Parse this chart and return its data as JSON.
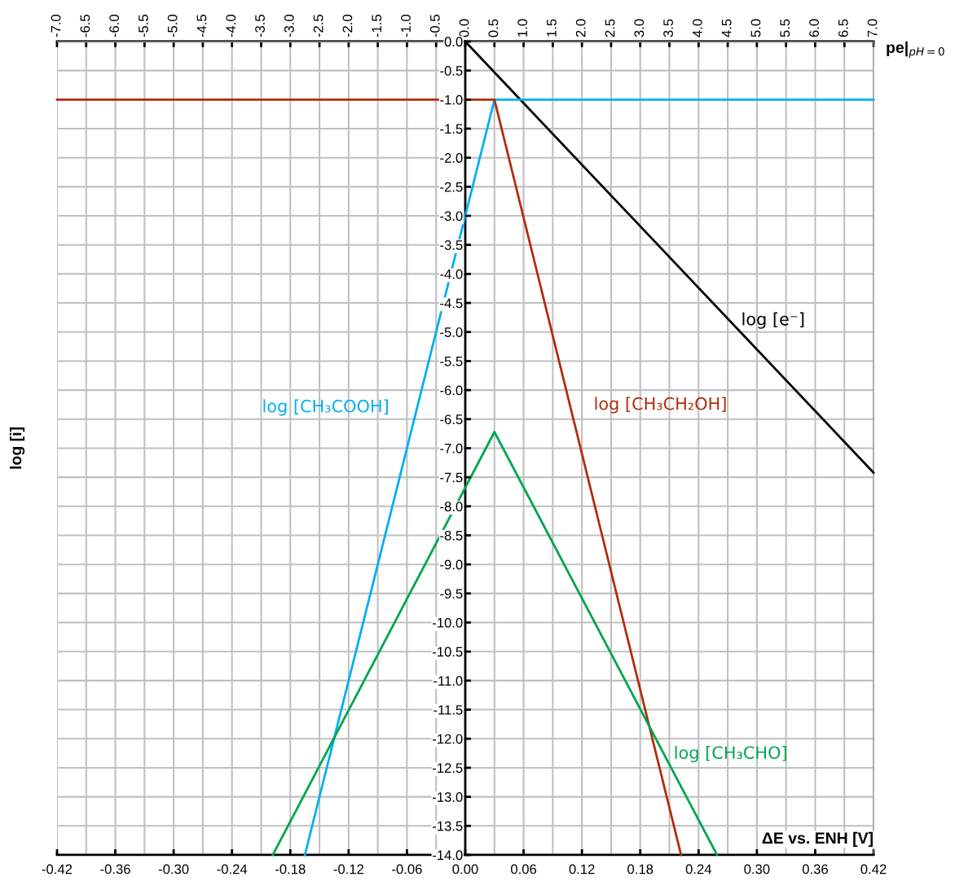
{
  "chart_data": {
    "type": "line",
    "xlabel": "ΔE vs. ENH [V]",
    "ylabel": "log [i]",
    "x2label": "pe|$_{pH=0}$",
    "series": [
      {
        "name": "log [e⁻]",
        "color": "#000000",
        "x": [
          0,
          0.42
        ],
        "values": [
          0,
          -7.42
        ]
      },
      {
        "name": "log [CH₃COOH]",
        "color": "#00b0f0",
        "x": [
          -0.165,
          0.03,
          0.42
        ],
        "values": [
          -14,
          -1,
          -1
        ]
      },
      {
        "name": "log [CH₃CH₂OH]",
        "color": "#b22d0a",
        "x": [
          -0.42,
          0.03,
          0.222
        ],
        "values": [
          -1,
          -1,
          -14
        ]
      },
      {
        "name": "log [CH₃CHO]",
        "color": "#00a550",
        "x": [
          -0.198,
          0.03,
          0.259
        ],
        "values": [
          -14,
          -6.72,
          -14
        ]
      }
    ],
    "xlim": [
      -0.42,
      0.42
    ],
    "ylim": [
      -14,
      0
    ],
    "x2lim": [
      -7,
      7
    ],
    "xticks": [
      {
        "value": -0.42,
        "label": "-0.42"
      },
      {
        "value": -0.36,
        "label": "-0.36"
      },
      {
        "value": -0.3,
        "label": "-0.30"
      },
      {
        "value": -0.24,
        "label": "-0.24"
      },
      {
        "value": -0.18,
        "label": "-0.18"
      },
      {
        "value": -0.12,
        "label": "-0.12"
      },
      {
        "value": -0.06,
        "label": "-0.06"
      },
      {
        "value": 0,
        "label": "0.00"
      },
      {
        "value": 0.06,
        "label": "0.06"
      },
      {
        "value": 0.12,
        "label": "0.12"
      },
      {
        "value": 0.18,
        "label": "0.18"
      },
      {
        "value": 0.24,
        "label": "0.24"
      },
      {
        "value": 0.3,
        "label": "0.30"
      },
      {
        "value": 0.36,
        "label": "0.36"
      },
      {
        "value": 0.42,
        "label": "0.42"
      }
    ],
    "x2ticks": [
      {
        "value": -7,
        "label": "-7.0"
      },
      {
        "value": -6.5,
        "label": "-6.5"
      },
      {
        "value": -6,
        "label": "-6.0"
      },
      {
        "value": -5.5,
        "label": "-5.5"
      },
      {
        "value": -5,
        "label": "-5.0"
      },
      {
        "value": -4.5,
        "label": "-4.5"
      },
      {
        "value": -4,
        "label": "-4.0"
      },
      {
        "value": -3.5,
        "label": "-3.5"
      },
      {
        "value": -3,
        "label": "-3.0"
      },
      {
        "value": -2.5,
        "label": "-2.5"
      },
      {
        "value": -2,
        "label": "-2.0"
      },
      {
        "value": -1.5,
        "label": "-1.5"
      },
      {
        "value": -1,
        "label": "-1.0"
      },
      {
        "value": -0.5,
        "label": "-0.5"
      },
      {
        "value": 0,
        "label": "0.0"
      },
      {
        "value": 0.5,
        "label": "0.5"
      },
      {
        "value": 1,
        "label": "1.0"
      },
      {
        "value": 1.5,
        "label": "1.5"
      },
      {
        "value": 2,
        "label": "2.0"
      },
      {
        "value": 2.5,
        "label": "2.5"
      },
      {
        "value": 3,
        "label": "3.0"
      },
      {
        "value": 3.5,
        "label": "3.5"
      },
      {
        "value": 4,
        "label": "4.0"
      },
      {
        "value": 4.5,
        "label": "4.5"
      },
      {
        "value": 5,
        "label": "5.0"
      },
      {
        "value": 5.5,
        "label": "5.5"
      },
      {
        "value": 6,
        "label": "6.0"
      },
      {
        "value": 6.5,
        "label": "6.5"
      },
      {
        "value": 7,
        "label": "7.0"
      }
    ],
    "yticks": [
      {
        "value": 0,
        "label": "0.0"
      },
      {
        "value": -0.5,
        "label": "-0.5"
      },
      {
        "value": -1,
        "label": "-1.0"
      },
      {
        "value": -1.5,
        "label": "-1.5"
      },
      {
        "value": -2,
        "label": "-2.0"
      },
      {
        "value": -2.5,
        "label": "-2.5"
      },
      {
        "value": -3,
        "label": "-3.0"
      },
      {
        "value": -3.5,
        "label": "-3.5"
      },
      {
        "value": -4,
        "label": "-4.0"
      },
      {
        "value": -4.5,
        "label": "-4.5"
      },
      {
        "value": -5,
        "label": "-5.0"
      },
      {
        "value": -5.5,
        "label": "-5.5"
      },
      {
        "value": -6,
        "label": "-6.0"
      },
      {
        "value": -6.5,
        "label": "-6.5"
      },
      {
        "value": -7,
        "label": "-7.0"
      },
      {
        "value": -7.5,
        "label": "-7.5"
      },
      {
        "value": -8,
        "label": "-8.0"
      },
      {
        "value": -8.5,
        "label": "-8.5"
      },
      {
        "value": -9,
        "label": "-9.0"
      },
      {
        "value": -9.5,
        "label": "-9.5"
      },
      {
        "value": -10,
        "label": "-10.0"
      },
      {
        "value": -10.5,
        "label": "-10.5"
      },
      {
        "value": -11,
        "label": "-11.0"
      },
      {
        "value": -11.5,
        "label": "-11.5"
      },
      {
        "value": -12,
        "label": "-12.0"
      },
      {
        "value": -12.5,
        "label": "-12.5"
      },
      {
        "value": -13,
        "label": "-13.0"
      },
      {
        "value": -13.5,
        "label": "-13.5"
      },
      {
        "value": -14,
        "label": "-14.0"
      }
    ],
    "grid": true,
    "marker": "none",
    "line_style": "solid"
  }
}
